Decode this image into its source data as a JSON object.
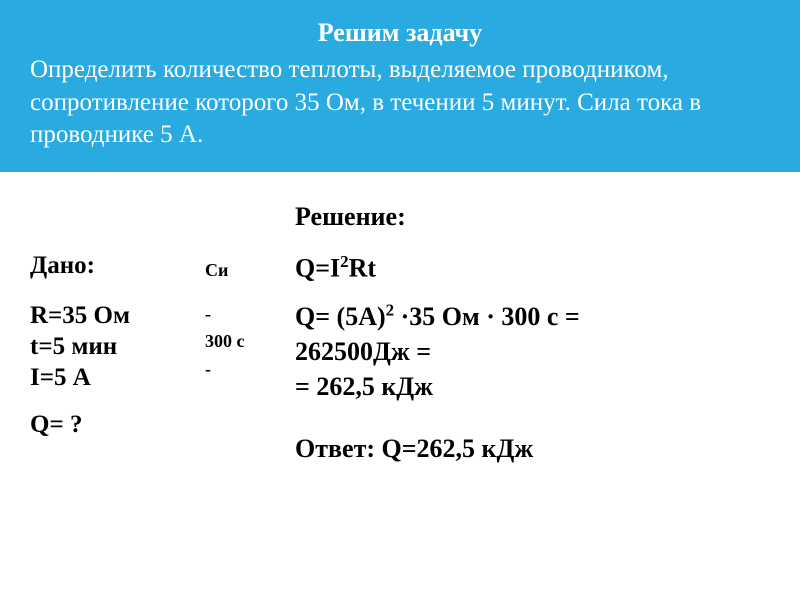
{
  "header": {
    "title": "Решим задачу",
    "body": "Определить количество теплоты, выделяемое проводником, сопротивление которого 35 Ом, в течении 5 минут. Сила тока в проводнике 5 А."
  },
  "given": {
    "label": "Дано:",
    "lines": [
      "R=35 Ом",
      "t=5 мин",
      "I=5 А"
    ],
    "question": "Q= ?"
  },
  "si": {
    "label": "Си",
    "lines": [
      "-",
      "300 с",
      "-"
    ]
  },
  "solution": {
    "label": "Решение:",
    "formula_prefix": "Q=I",
    "formula_exp": "2",
    "formula_suffix": "Rt",
    "calc_prefix": "Q= (5А)",
    "calc_exp": "2",
    "calc_mid": " ·35 Ом · 300 с =",
    "calc_line2": "262500Дж =",
    "calc_line3": "= 262,5 кДж",
    "answer": "Ответ: Q=262,5 кДж"
  },
  "colors": {
    "header_bg": "#29abe2",
    "header_text": "#ffffff",
    "body_text": "#000000"
  }
}
